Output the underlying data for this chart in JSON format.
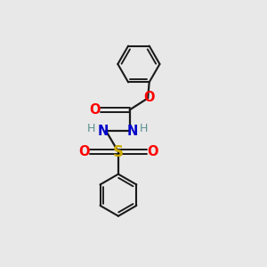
{
  "bg_color": "#e8e8e8",
  "bond_color": "#1a1a1a",
  "atom_colors": {
    "O": "#ff0000",
    "N": "#0000cc",
    "S": "#ccaa00",
    "H_label": "#5a9090",
    "C": "#1a1a1a"
  },
  "fig_size": [
    3.0,
    3.0
  ],
  "dpi": 100,
  "xlim": [
    0,
    10
  ],
  "ylim": [
    0,
    10
  ]
}
